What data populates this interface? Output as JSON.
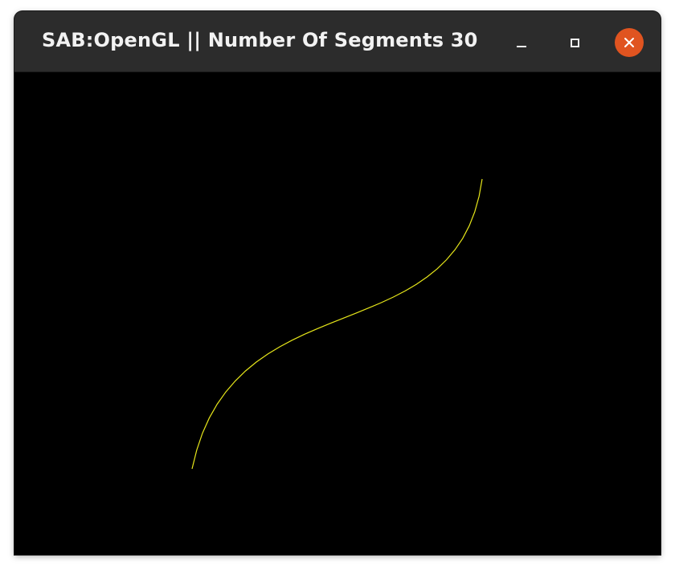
{
  "window": {
    "title": "SAB:OpenGL || Number Of Segments 30"
  },
  "titlebar_buttons": {
    "minimize_icon": "minimize-icon",
    "maximize_icon": "maximize-icon",
    "close_icon": "close-icon",
    "close_color": "#e05420"
  },
  "canvas": {
    "background_color": "#000000",
    "curve_color": "#e6e61a",
    "curve_type": "cubic bezier polyline",
    "segments": 30
  }
}
